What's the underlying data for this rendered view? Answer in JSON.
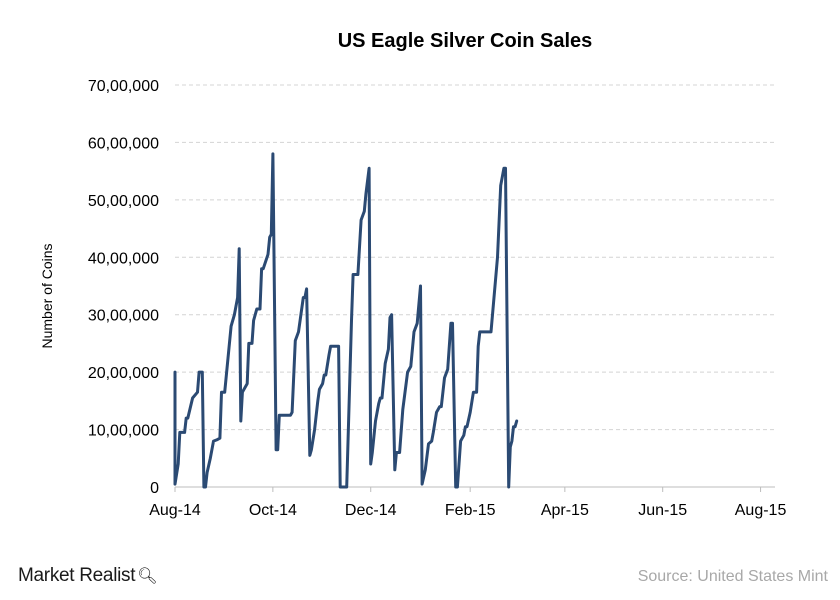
{
  "chart_data": {
    "type": "line",
    "title": "US Eagle Silver Coin Sales",
    "xlabel": "",
    "ylabel": "Number of Coins",
    "ylim": [
      0,
      7000000
    ],
    "grid": true,
    "yticks": [
      {
        "value": 0,
        "label": "0"
      },
      {
        "value": 1000000,
        "label": "10,00,000"
      },
      {
        "value": 2000000,
        "label": "20,00,000"
      },
      {
        "value": 3000000,
        "label": "30,00,000"
      },
      {
        "value": 4000000,
        "label": "40,00,000"
      },
      {
        "value": 5000000,
        "label": "50,00,000"
      },
      {
        "value": 6000000,
        "label": "60,00,000"
      },
      {
        "value": 7000000,
        "label": "70,00,000"
      }
    ],
    "xlim": [
      "2014-08-01",
      "2015-08-10"
    ],
    "xticks": [
      {
        "date": "2014-08-01",
        "label": "Aug-14"
      },
      {
        "date": "2014-10-01",
        "label": "Oct-14"
      },
      {
        "date": "2014-12-01",
        "label": "Dec-14"
      },
      {
        "date": "2015-02-01",
        "label": "Feb-15"
      },
      {
        "date": "2015-04-01",
        "label": "Apr-15"
      },
      {
        "date": "2015-06-01",
        "label": "Jun-15"
      },
      {
        "date": "2015-08-01",
        "label": "Aug-15"
      }
    ],
    "series": [
      {
        "name": "",
        "color": "#2b4a73",
        "points": [
          [
            "2014-08-01",
            2000000
          ],
          [
            "2014-08-01",
            50000
          ],
          [
            "2014-08-03",
            400000
          ],
          [
            "2014-08-04",
            950000
          ],
          [
            "2014-08-07",
            950000
          ],
          [
            "2014-08-08",
            1200000
          ],
          [
            "2014-08-09",
            1200000
          ],
          [
            "2014-08-12",
            1550000
          ],
          [
            "2014-08-15",
            1650000
          ],
          [
            "2014-08-16",
            2000000
          ],
          [
            "2014-08-18",
            2000000
          ],
          [
            "2014-08-19",
            0
          ],
          [
            "2014-08-20",
            0
          ],
          [
            "2014-08-21",
            250000
          ],
          [
            "2014-08-23",
            500000
          ],
          [
            "2014-08-25",
            800000
          ],
          [
            "2014-08-27",
            820000
          ],
          [
            "2014-08-29",
            850000
          ],
          [
            "2014-08-30",
            1650000
          ],
          [
            "2014-09-01",
            1650000
          ],
          [
            "2014-09-05",
            2800000
          ],
          [
            "2014-09-07",
            3000000
          ],
          [
            "2014-09-09",
            3300000
          ],
          [
            "2014-09-10",
            4150000
          ],
          [
            "2014-09-11",
            1150000
          ],
          [
            "2014-09-12",
            1650000
          ],
          [
            "2014-09-15",
            1800000
          ],
          [
            "2014-09-16",
            2500000
          ],
          [
            "2014-09-18",
            2500000
          ],
          [
            "2014-09-19",
            2900000
          ],
          [
            "2014-09-21",
            3100000
          ],
          [
            "2014-09-23",
            3100000
          ],
          [
            "2014-09-24",
            3800000
          ],
          [
            "2014-09-25",
            3800000
          ],
          [
            "2014-09-28",
            4050000
          ],
          [
            "2014-09-29",
            4350000
          ],
          [
            "2014-09-30",
            4400000
          ],
          [
            "2014-10-01",
            5800000
          ],
          [
            "2014-10-03",
            650000
          ],
          [
            "2014-10-04",
            650000
          ],
          [
            "2014-10-05",
            1250000
          ],
          [
            "2014-10-12",
            1250000
          ],
          [
            "2014-10-13",
            1300000
          ],
          [
            "2014-10-15",
            2550000
          ],
          [
            "2014-10-17",
            2700000
          ],
          [
            "2014-10-20",
            3300000
          ],
          [
            "2014-10-21",
            3300000
          ],
          [
            "2014-10-22",
            3450000
          ],
          [
            "2014-10-24",
            550000
          ],
          [
            "2014-10-25",
            650000
          ],
          [
            "2014-10-27",
            1000000
          ],
          [
            "2014-10-29",
            1500000
          ],
          [
            "2014-10-30",
            1700000
          ],
          [
            "2014-11-01",
            1800000
          ],
          [
            "2014-11-02",
            1950000
          ],
          [
            "2014-11-03",
            1950000
          ],
          [
            "2014-11-05",
            2300000
          ],
          [
            "2014-11-06",
            2450000
          ],
          [
            "2014-11-11",
            2450000
          ],
          [
            "2014-11-12",
            0
          ],
          [
            "2014-11-16",
            0
          ],
          [
            "2014-11-19",
            2900000
          ],
          [
            "2014-11-20",
            3700000
          ],
          [
            "2014-11-23",
            3700000
          ],
          [
            "2014-11-25",
            4650000
          ],
          [
            "2014-11-27",
            4800000
          ],
          [
            "2014-11-28",
            5100000
          ],
          [
            "2014-11-30",
            5550000
          ],
          [
            "2014-12-01",
            400000
          ],
          [
            "2014-12-02",
            600000
          ],
          [
            "2014-12-04",
            1150000
          ],
          [
            "2014-12-06",
            1450000
          ],
          [
            "2014-12-07",
            1550000
          ],
          [
            "2014-12-08",
            1550000
          ],
          [
            "2014-12-10",
            2150000
          ],
          [
            "2014-12-12",
            2400000
          ],
          [
            "2014-12-13",
            2950000
          ],
          [
            "2014-12-14",
            3000000
          ],
          [
            "2014-12-16",
            300000
          ],
          [
            "2014-12-17",
            600000
          ],
          [
            "2014-12-19",
            600000
          ],
          [
            "2014-12-21",
            1350000
          ],
          [
            "2014-12-24",
            2000000
          ],
          [
            "2014-12-26",
            2100000
          ],
          [
            "2014-12-28",
            2700000
          ],
          [
            "2014-12-30",
            2850000
          ],
          [
            "2015-01-01",
            3500000
          ],
          [
            "2015-01-02",
            50000
          ],
          [
            "2015-01-04",
            300000
          ],
          [
            "2015-01-06",
            750000
          ],
          [
            "2015-01-08",
            800000
          ],
          [
            "2015-01-09",
            950000
          ],
          [
            "2015-01-11",
            1300000
          ],
          [
            "2015-01-13",
            1400000
          ],
          [
            "2015-01-14",
            1400000
          ],
          [
            "2015-01-16",
            1900000
          ],
          [
            "2015-01-18",
            2050000
          ],
          [
            "2015-01-20",
            2850000
          ],
          [
            "2015-01-21",
            2850000
          ],
          [
            "2015-01-23",
            0
          ],
          [
            "2015-01-24",
            0
          ],
          [
            "2015-01-25",
            400000
          ],
          [
            "2015-01-26",
            800000
          ],
          [
            "2015-01-27",
            850000
          ],
          [
            "2015-01-28",
            900000
          ],
          [
            "2015-01-29",
            1050000
          ],
          [
            "2015-01-30",
            1050000
          ],
          [
            "2015-02-01",
            1300000
          ],
          [
            "2015-02-03",
            1650000
          ],
          [
            "2015-02-05",
            1650000
          ],
          [
            "2015-02-06",
            2450000
          ],
          [
            "2015-02-07",
            2700000
          ],
          [
            "2015-02-10",
            2700000
          ],
          [
            "2015-02-11",
            2700000
          ],
          [
            "2015-02-12",
            2700000
          ],
          [
            "2015-02-14",
            2700000
          ],
          [
            "2015-02-18",
            4000000
          ],
          [
            "2015-02-20",
            5250000
          ],
          [
            "2015-02-22",
            5550000
          ],
          [
            "2015-02-23",
            5550000
          ],
          [
            "2015-02-25",
            0
          ],
          [
            "2015-02-26",
            700000
          ],
          [
            "2015-02-27",
            800000
          ],
          [
            "2015-02-28",
            1050000
          ],
          [
            "2015-03-01",
            1050000
          ],
          [
            "2015-03-02",
            1150000
          ]
        ]
      }
    ]
  },
  "footer": {
    "brand": "Market Realist",
    "source": "Source: United States Mint"
  }
}
